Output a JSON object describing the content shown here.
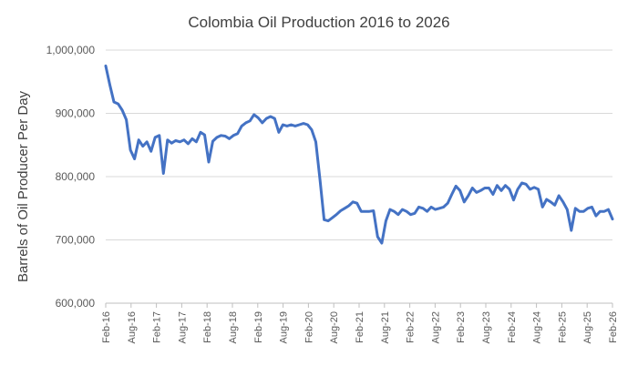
{
  "chart_data": {
    "type": "line",
    "title": "Colombia Oil Production  2016 to 2026",
    "xlabel": "",
    "ylabel": "Barrels of Oil Producer Per Day",
    "ylim": [
      600000,
      1000000
    ],
    "y_ticks": [
      600000,
      700000,
      800000,
      900000,
      1000000
    ],
    "y_tick_labels": [
      "600,000",
      "700,000",
      "800,000",
      "900,000",
      "1,000,000"
    ],
    "x_tick_labels": [
      "Feb-16",
      "Aug-16",
      "Feb-17",
      "Aug-17",
      "Feb-18",
      "Aug-18",
      "Feb-19",
      "Aug-19",
      "Feb-20",
      "Aug-20",
      "Feb-21",
      "Aug-21",
      "Feb-22",
      "Aug-22",
      "Feb-23",
      "Aug-23",
      "Feb-24",
      "Aug-24",
      "Feb-25",
      "Aug-25",
      "Feb-26"
    ],
    "grid": true,
    "legend": "none",
    "colors": {
      "series": "#4472c4"
    },
    "series": [
      {
        "values": [
          975000,
          945000,
          918000,
          915000,
          905000,
          890000,
          842000,
          828000,
          858000,
          848000,
          855000,
          840000,
          862000,
          865000,
          805000,
          858000,
          853000,
          857000,
          855000,
          858000,
          852000,
          860000,
          855000,
          870000,
          866000,
          823000,
          856000,
          862000,
          865000,
          864000,
          860000,
          865000,
          868000,
          880000,
          885000,
          888000,
          898000,
          893000,
          885000,
          892000,
          895000,
          892000,
          870000,
          882000,
          880000,
          882000,
          880000,
          882000,
          884000,
          882000,
          874000,
          855000,
          795000,
          732000,
          730000,
          735000,
          740000,
          746000,
          750000,
          754000,
          760000,
          758000,
          745000,
          745000,
          745000,
          746000,
          705000,
          695000,
          730000,
          748000,
          745000,
          740000,
          748000,
          745000,
          740000,
          742000,
          752000,
          750000,
          745000,
          752000,
          748000,
          750000,
          752000,
          758000,
          772000,
          785000,
          778000,
          760000,
          770000,
          782000,
          775000,
          778000,
          782000,
          782000,
          772000,
          786000,
          778000,
          786000,
          780000,
          763000,
          780000,
          790000,
          788000,
          780000,
          783000,
          780000,
          752000,
          764000,
          760000,
          755000,
          770000,
          760000,
          748000,
          715000,
          750000,
          745000,
          745000,
          750000,
          752000,
          738000,
          745000,
          745000,
          748000,
          733000
        ]
      }
    ]
  }
}
